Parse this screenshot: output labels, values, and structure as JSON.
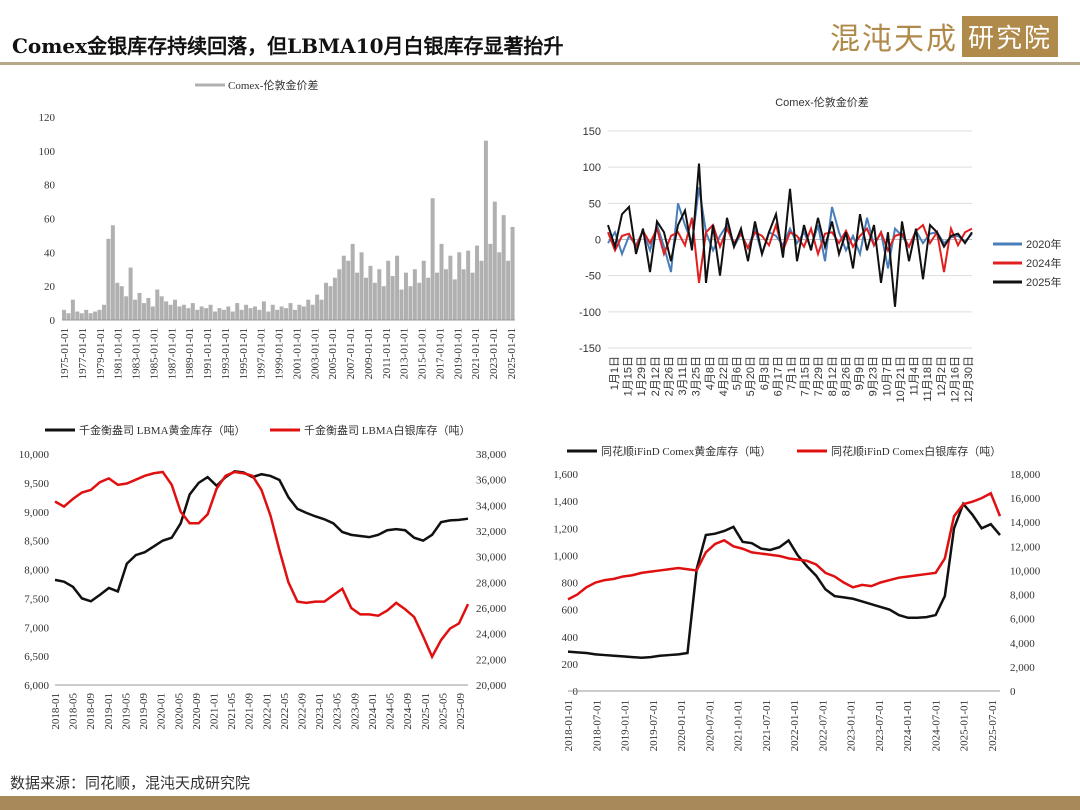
{
  "header": {
    "title": "Comex金银库存持续回落，但LBMA10月白银库存显著抬升",
    "logo_text": "混沌天成",
    "logo_box": "研究院"
  },
  "footer": {
    "source": "数据来源：同花顺，混沌天成研究院"
  },
  "chart_data": [
    {
      "type": "bar",
      "title": "",
      "legend": [
        "Comex-伦敦金价差"
      ],
      "ylim": [
        0,
        120
      ],
      "yticks": [
        0,
        20,
        40,
        60,
        80,
        100,
        120
      ],
      "xticks": [
        "1975-01-01",
        "1977-01-01",
        "1979-01-01",
        "1981-01-01",
        "1983-01-01",
        "1985-01-01",
        "1987-01-01",
        "1989-01-01",
        "1991-01-01",
        "1993-01-01",
        "1995-01-01",
        "1997-01-01",
        "1999-01-01",
        "2001-01-01",
        "2003-01-01",
        "2005-01-01",
        "2007-01-01",
        "2009-01-01",
        "2011-01-01",
        "2013-01-01",
        "2015-01-01",
        "2017-01-01",
        "2019-01-01",
        "2021-01-01",
        "2023-01-01",
        "2025-01-01"
      ],
      "color": "#b0b0b0",
      "values": [
        6,
        4,
        12,
        5,
        4,
        6,
        4,
        5,
        6,
        9,
        48,
        56,
        22,
        20,
        14,
        31,
        12,
        16,
        10,
        13,
        8,
        18,
        14,
        11,
        9,
        12,
        8,
        9,
        7,
        10,
        6,
        8,
        7,
        9,
        5,
        7,
        6,
        8,
        5,
        10,
        6,
        9,
        7,
        8,
        6,
        11,
        5,
        9,
        6,
        8,
        7,
        10,
        6,
        9,
        8,
        12,
        9,
        15,
        12,
        22,
        20,
        25,
        30,
        38,
        35,
        45,
        28,
        40,
        25,
        32,
        22,
        30,
        20,
        35,
        26,
        38,
        18,
        28,
        20,
        30,
        22,
        35,
        25,
        72,
        28,
        45,
        30,
        38,
        24,
        40,
        30,
        41,
        28,
        44,
        35,
        106,
        45,
        70,
        40,
        62,
        35,
        55
      ]
    },
    {
      "type": "line",
      "title": "Comex-伦敦金价差",
      "ylim": [
        -150,
        150
      ],
      "yticks": [
        -150,
        -100,
        -50,
        0,
        50,
        100,
        150
      ],
      "xticks": [
        "1月1日",
        "1月15日",
        "1月29日",
        "2月12日",
        "2月26日",
        "3月11日",
        "3月25日",
        "4月8日",
        "4月22日",
        "5月6日",
        "5月20日",
        "6月3日",
        "6月17日",
        "7月1日",
        "7月15日",
        "7月29日",
        "8月12日",
        "8月26日",
        "9月9日",
        "9月23日",
        "10月7日",
        "10月21日",
        "11月4日",
        "11月18日",
        "12月2日",
        "12月16日",
        "12月30日"
      ],
      "legend_position": "right",
      "series": [
        {
          "name": "2020年",
          "color": "#4a7ebb",
          "values": [
            -5,
            10,
            -20,
            5,
            -8,
            12,
            -15,
            20,
            -10,
            -45,
            50,
            20,
            -5,
            72,
            10,
            -15,
            5,
            20,
            -10,
            8,
            -12,
            15,
            -20,
            10,
            5,
            -8,
            15,
            -5,
            10,
            -12,
            20,
            -30,
            45,
            10,
            -15,
            5,
            -20,
            30,
            -8,
            10,
            -40,
            15,
            5,
            -10,
            12,
            -5,
            8,
            10,
            -5,
            3,
            5,
            -3,
            8
          ]
        },
        {
          "name": "2024年",
          "color": "#e02020",
          "values": [
            10,
            -15,
            5,
            8,
            -10,
            12,
            -5,
            15,
            -20,
            5,
            10,
            -8,
            30,
            -60,
            10,
            20,
            -10,
            15,
            -5,
            8,
            -12,
            10,
            5,
            -8,
            20,
            -15,
            10,
            5,
            -10,
            15,
            -20,
            8,
            10,
            -5,
            12,
            -10,
            5,
            15,
            -8,
            10,
            -15,
            5,
            8,
            -10,
            12,
            20,
            -5,
            10,
            -45,
            15,
            -8,
            10,
            15
          ]
        },
        {
          "name": "2025年",
          "color": "#111111",
          "values": [
            20,
            -10,
            35,
            45,
            -20,
            15,
            -45,
            25,
            10,
            -30,
            20,
            40,
            -15,
            105,
            -60,
            20,
            -50,
            30,
            -10,
            15,
            -30,
            25,
            -20,
            10,
            35,
            -25,
            70,
            -30,
            20,
            -15,
            30,
            -10,
            25,
            -20,
            10,
            -40,
            35,
            -15,
            20,
            -60,
            10,
            -93,
            25,
            -30,
            15,
            -55,
            20,
            10,
            -10,
            5,
            8,
            -5,
            10
          ]
        }
      ]
    },
    {
      "type": "line",
      "legend_position": "top",
      "x_start": "2018-01",
      "x_step_months": 2,
      "xticks": [
        "2018-01",
        "2018-05",
        "2018-09",
        "2019-01",
        "2019-05",
        "2019-09",
        "2020-01",
        "2020-05",
        "2020-09",
        "2021-01",
        "2021-05",
        "2021-09",
        "2022-01",
        "2022-05",
        "2022-09",
        "2023-01",
        "2023-05",
        "2023-09",
        "2024-01",
        "2024-05",
        "2024-09",
        "2025-01",
        "2025-05",
        "2025-09"
      ],
      "y_left": {
        "lim": [
          6000,
          10000
        ],
        "ticks": [
          "6,000",
          "6,500",
          "7,000",
          "7,500",
          "8,000",
          "8,500",
          "9,000",
          "9,500",
          "10,000"
        ]
      },
      "y_right": {
        "lim": [
          20000,
          38000
        ],
        "ticks": [
          "20,000",
          "22,000",
          "24,000",
          "26,000",
          "28,000",
          "30,000",
          "32,000",
          "34,000",
          "36,000",
          "38,000"
        ]
      },
      "series": [
        {
          "name": "千金衡盎司 LBMA黄金库存（吨）",
          "color": "#111111",
          "axis": "left",
          "values": [
            7820,
            7790,
            7700,
            7500,
            7450,
            7560,
            7680,
            7620,
            8100,
            8250,
            8300,
            8400,
            8500,
            8550,
            8800,
            9300,
            9500,
            9600,
            9450,
            9600,
            9700,
            9680,
            9600,
            9650,
            9620,
            9550,
            9250,
            9050,
            8980,
            8920,
            8870,
            8800,
            8650,
            8600,
            8580,
            8560,
            8600,
            8680,
            8700,
            8680,
            8550,
            8500,
            8600,
            8820,
            8850,
            8860,
            8880
          ]
        },
        {
          "name": "千金衡盎司 LBMA白银库存（吨）",
          "color": "#e01010",
          "axis": "right",
          "values": [
            34300,
            33900,
            34500,
            35000,
            35200,
            35800,
            36100,
            35600,
            35700,
            36000,
            36300,
            36500,
            36600,
            35600,
            33500,
            32600,
            32600,
            33300,
            35300,
            36300,
            36600,
            36500,
            36300,
            35200,
            33200,
            30500,
            28000,
            26500,
            26400,
            26500,
            26500,
            27000,
            27500,
            26000,
            25500,
            25500,
            25400,
            25800,
            26400,
            25900,
            25300,
            23800,
            22200,
            23500,
            24400,
            24800,
            26300
          ]
        }
      ]
    },
    {
      "type": "line",
      "legend_position": "top",
      "x_start": "2018-01",
      "x_step_months": 2,
      "xticks": [
        "2018-01-01",
        "2018-07-01",
        "2019-01-01",
        "2019-07-01",
        "2020-01-01",
        "2020-07-01",
        "2021-01-01",
        "2021-07-01",
        "2022-01-01",
        "2022-07-01",
        "2023-01-01",
        "2023-07-01",
        "2024-01-01",
        "2024-07-01",
        "2025-01-01",
        "2025-07-01"
      ],
      "y_left": {
        "lim": [
          0,
          1600
        ],
        "ticks": [
          "0",
          "200",
          "400",
          "600",
          "800",
          "1,000",
          "1,200",
          "1,400",
          "1,600"
        ]
      },
      "y_right": {
        "lim": [
          0,
          18000
        ],
        "ticks": [
          "0",
          "2,000",
          "4,000",
          "6,000",
          "8,000",
          "10,000",
          "12,000",
          "14,000",
          "16,000",
          "18,000"
        ]
      },
      "series": [
        {
          "name": "同花顺iFinD Comex黄金库存（吨）",
          "color": "#111111",
          "axis": "left",
          "values": [
            290,
            285,
            280,
            270,
            265,
            260,
            255,
            250,
            245,
            250,
            260,
            265,
            270,
            280,
            900,
            1150,
            1160,
            1180,
            1210,
            1100,
            1090,
            1050,
            1040,
            1060,
            1110,
            1000,
            920,
            850,
            750,
            700,
            690,
            680,
            660,
            640,
            620,
            600,
            560,
            540,
            540,
            545,
            560,
            700,
            1200,
            1380,
            1300,
            1200,
            1230,
            1150
          ]
        },
        {
          "name": "同花顺iFinD Comex白银库存（吨）",
          "color": "#e01010",
          "axis": "right",
          "values": [
            7600,
            8000,
            8600,
            9000,
            9200,
            9300,
            9500,
            9600,
            9800,
            9900,
            10000,
            10100,
            10200,
            10100,
            10000,
            11500,
            12200,
            12500,
            12000,
            11800,
            11500,
            11400,
            11300,
            11200,
            11000,
            10900,
            10800,
            10500,
            9800,
            9500,
            9000,
            8600,
            8800,
            8700,
            9000,
            9200,
            9400,
            9500,
            9600,
            9700,
            9800,
            11000,
            14500,
            15500,
            15700,
            16000,
            16400,
            14500
          ]
        }
      ]
    }
  ]
}
